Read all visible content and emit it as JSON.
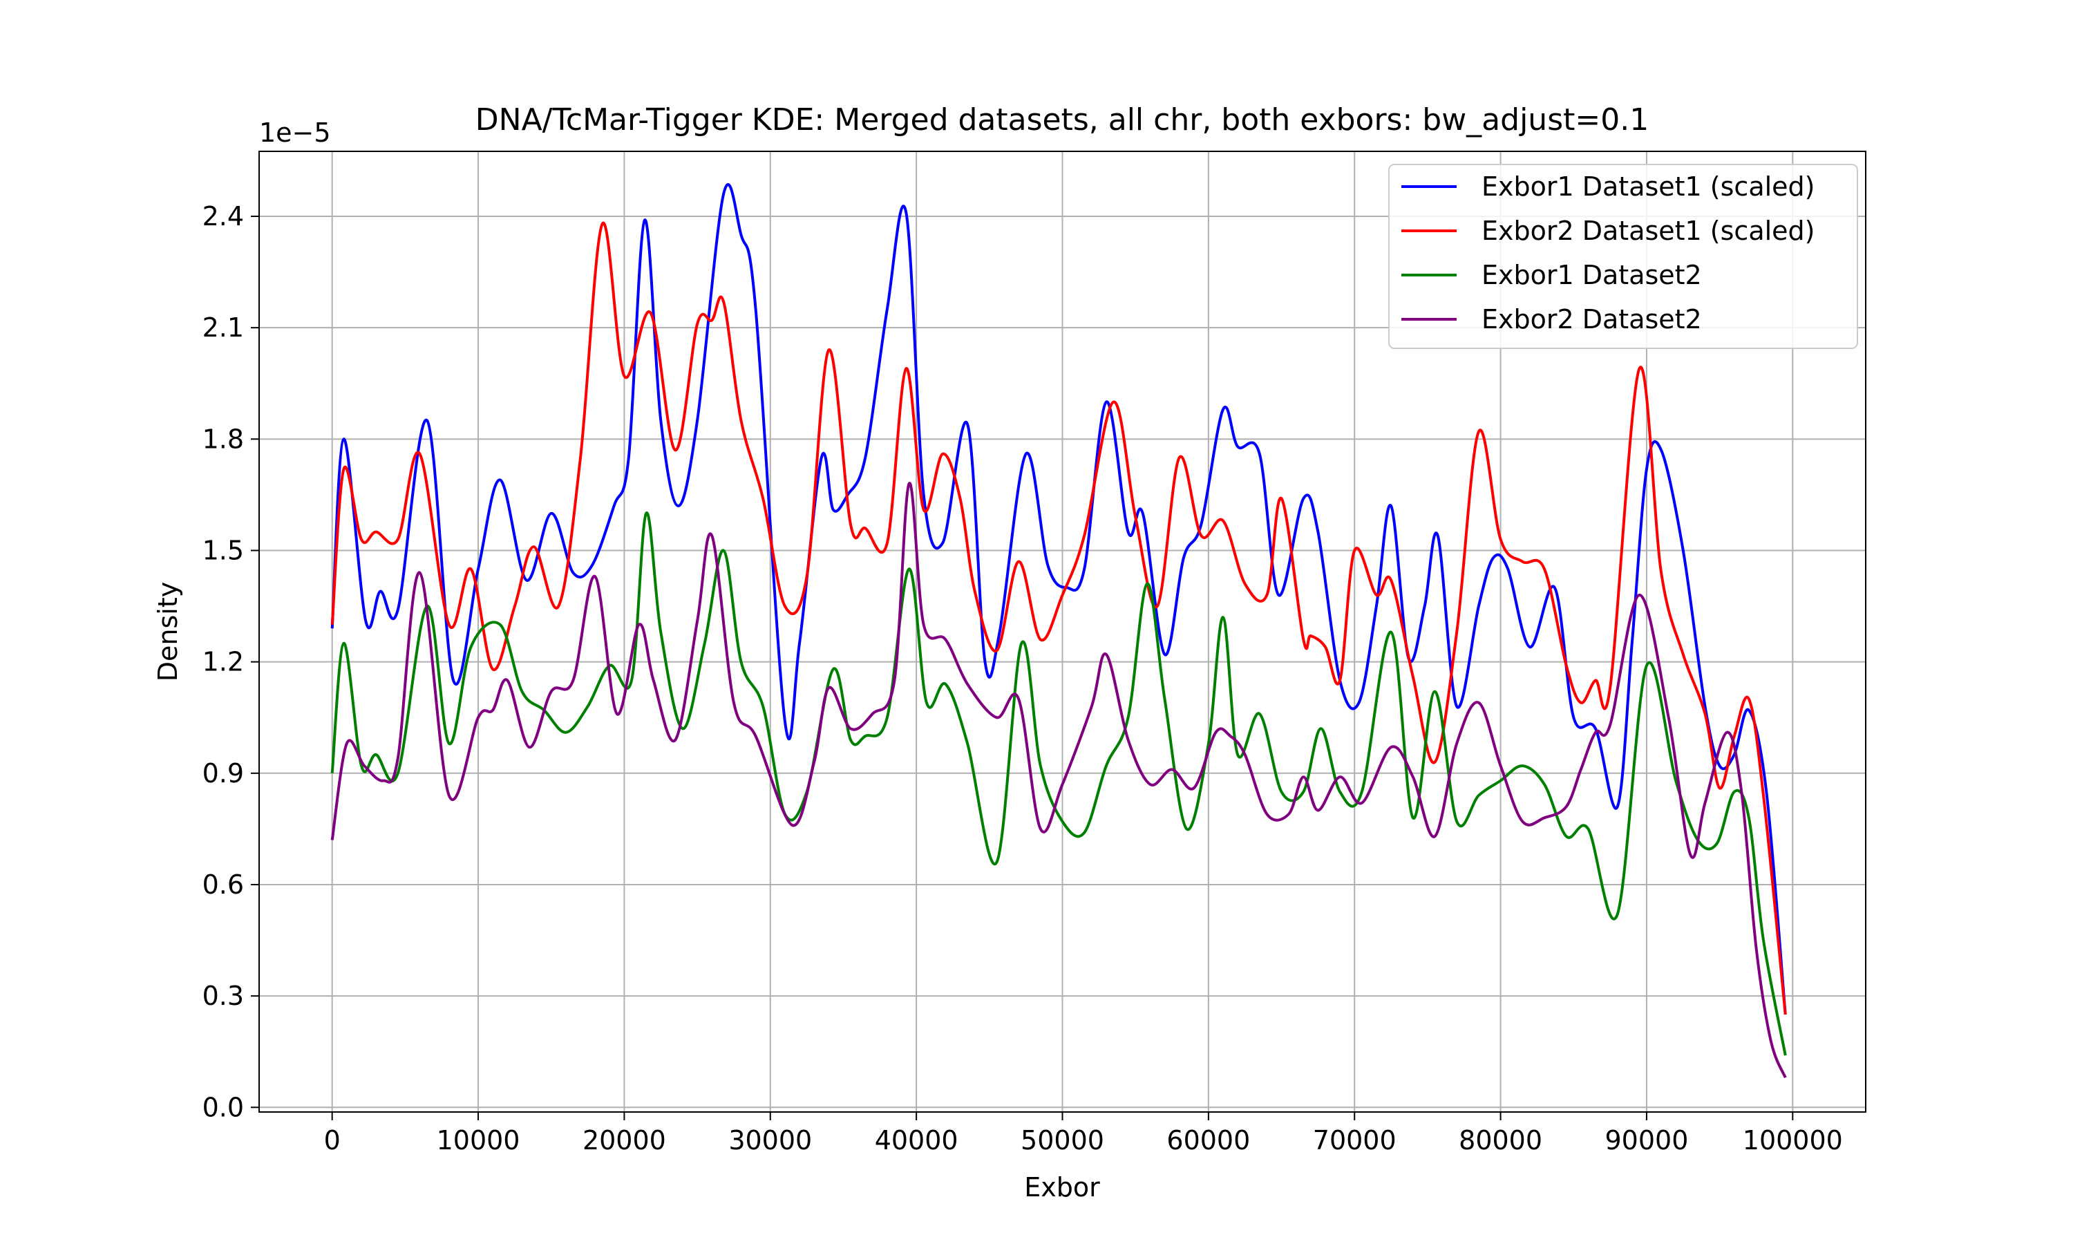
{
  "chart_data": {
    "type": "line",
    "title": "DNA/TcMar-Tigger KDE: Merged datasets, all chr, both exbors: bw_adjust=0.1",
    "xlabel": "Exbor",
    "ylabel": "Density",
    "y_scale_label": "1e−5",
    "xlim": [
      -5000,
      105000
    ],
    "ylim": [
      -1.25e-07,
      2.575e-05
    ],
    "x_ticks": [
      0,
      10000,
      20000,
      30000,
      40000,
      50000,
      60000,
      70000,
      80000,
      90000,
      100000
    ],
    "x_tick_labels": [
      "0",
      "10000",
      "20000",
      "30000",
      "40000",
      "50000",
      "60000",
      "70000",
      "80000",
      "90000",
      "100000"
    ],
    "y_ticks": [
      0,
      3e-06,
      6e-06,
      9e-06,
      1.2e-05,
      1.5e-05,
      1.8e-05,
      2.1e-05,
      2.4e-05
    ],
    "y_tick_labels": [
      "0.0",
      "0.3",
      "0.6",
      "0.9",
      "1.2",
      "1.5",
      "1.8",
      "2.1",
      "2.4"
    ],
    "grid": true,
    "legend_position": "top-right",
    "series": [
      {
        "name": "Exbor1 Dataset1 (scaled)",
        "color": "#0000ff",
        "x": [
          0,
          800,
          2300,
          3300,
          4500,
          6500,
          8300,
          10000,
          11500,
          13300,
          15000,
          16500,
          17800,
          19300,
          20300,
          21400,
          22500,
          23700,
          25000,
          26800,
          28000,
          29000,
          31000,
          32000,
          33500,
          34300,
          35300,
          36500,
          38000,
          39300,
          40500,
          41800,
          43500,
          44700,
          45700,
          47500,
          49000,
          50300,
          51500,
          53000,
          54500,
          55500,
          57000,
          58300,
          59500,
          61000,
          62000,
          63500,
          64800,
          66500,
          67500,
          69000,
          70300,
          71500,
          72500,
          73700,
          74800,
          75700,
          77000,
          78500,
          79500,
          80500,
          82000,
          83700,
          85000,
          86500,
          88000,
          89000,
          90000,
          91000,
          92500,
          94000,
          95000,
          96000,
          97000,
          98200,
          99500
        ],
        "y": [
          1.29e-05,
          1.8e-05,
          1.31e-05,
          1.39e-05,
          1.34e-05,
          1.85e-05,
          1.15e-05,
          1.45e-05,
          1.69e-05,
          1.42e-05,
          1.6e-05,
          1.44e-05,
          1.46e-05,
          1.62e-05,
          1.75e-05,
          2.39e-05,
          1.85e-05,
          1.62e-05,
          1.85e-05,
          2.46e-05,
          2.35e-05,
          2.15e-05,
          1.04e-05,
          1.25e-05,
          1.75e-05,
          1.61e-05,
          1.65e-05,
          1.75e-05,
          2.15e-05,
          2.41e-05,
          1.65e-05,
          1.52e-05,
          1.84e-05,
          1.2e-05,
          1.28e-05,
          1.76e-05,
          1.46e-05,
          1.4e-05,
          1.45e-05,
          1.9e-05,
          1.55e-05,
          1.6e-05,
          1.22e-05,
          1.48e-05,
          1.57e-05,
          1.88e-05,
          1.78e-05,
          1.76e-05,
          1.38e-05,
          1.64e-05,
          1.55e-05,
          1.15e-05,
          1.09e-05,
          1.35e-05,
          1.62e-05,
          1.21e-05,
          1.35e-05,
          1.54e-05,
          1.08e-05,
          1.35e-05,
          1.48e-05,
          1.45e-05,
          1.24e-05,
          1.4e-05,
          1.05e-05,
          1.02e-05,
          8.1e-06,
          1.25e-05,
          1.72e-05,
          1.77e-05,
          1.5e-05,
          1.08e-05,
          9.2e-06,
          9.5e-06,
          1.07e-05,
          8.5e-06,
          2.5e-06
        ]
      },
      {
        "name": "Exbor2 Dataset1 (scaled)",
        "color": "#ff0000",
        "x": [
          0,
          800,
          2000,
          3000,
          4500,
          6000,
          8000,
          9500,
          11000,
          12500,
          13800,
          15500,
          17000,
          18500,
          20000,
          21800,
          23500,
          25000,
          26000,
          26800,
          28000,
          29500,
          31000,
          32500,
          34000,
          35500,
          36500,
          38000,
          39300,
          40500,
          41800,
          43000,
          44000,
          45500,
          47000,
          48500,
          50000,
          51500,
          53500,
          55000,
          56500,
          58000,
          59500,
          61000,
          62500,
          64000,
          65000,
          66500,
          67000,
          68000,
          69000,
          70000,
          71500,
          72500,
          74000,
          75500,
          77000,
          78500,
          80000,
          81500,
          83000,
          84500,
          85500,
          86500,
          87500,
          89500,
          91000,
          92500,
          94000,
          95000,
          96000,
          97000,
          98000,
          99500
        ],
        "y": [
          1.3e-05,
          1.72e-05,
          1.53e-05,
          1.55e-05,
          1.53e-05,
          1.76e-05,
          1.3e-05,
          1.45e-05,
          1.18e-05,
          1.35e-05,
          1.51e-05,
          1.35e-05,
          1.75e-05,
          2.38e-05,
          1.97e-05,
          2.14e-05,
          1.77e-05,
          2.11e-05,
          2.12e-05,
          2.17e-05,
          1.85e-05,
          1.64e-05,
          1.35e-05,
          1.43e-05,
          2.04e-05,
          1.57e-05,
          1.56e-05,
          1.52e-05,
          1.99e-05,
          1.61e-05,
          1.76e-05,
          1.64e-05,
          1.39e-05,
          1.23e-05,
          1.47e-05,
          1.26e-05,
          1.38e-05,
          1.54e-05,
          1.9e-05,
          1.59e-05,
          1.35e-05,
          1.75e-05,
          1.54e-05,
          1.58e-05,
          1.41e-05,
          1.38e-05,
          1.64e-05,
          1.26e-05,
          1.27e-05,
          1.24e-05,
          1.15e-05,
          1.5e-05,
          1.38e-05,
          1.42e-05,
          1.16e-05,
          9.3e-06,
          1.28e-05,
          1.82e-05,
          1.53e-05,
          1.47e-05,
          1.45e-05,
          1.19e-05,
          1.09e-05,
          1.15e-05,
          1.13e-05,
          1.99e-05,
          1.44e-05,
          1.22e-05,
          1.06e-05,
          8.6e-06,
          1e-05,
          1.1e-05,
          8.4e-06,
          2.5e-06
        ]
      },
      {
        "name": "Exbor1 Dataset2",
        "color": "#008000",
        "x": [
          0,
          800,
          2000,
          3000,
          4500,
          6500,
          8000,
          9500,
          11500,
          13000,
          14500,
          16000,
          17500,
          19000,
          20500,
          21500,
          22500,
          24000,
          25500,
          26800,
          28000,
          29500,
          31000,
          32500,
          34300,
          35500,
          36500,
          38000,
          39500,
          40700,
          42000,
          43500,
          45500,
          47200,
          48500,
          50000,
          51500,
          53000,
          54500,
          55800,
          57000,
          58500,
          60000,
          61000,
          62000,
          63500,
          65000,
          66500,
          67700,
          69000,
          70500,
          72500,
          74000,
          75500,
          77000,
          78500,
          80000,
          81500,
          83000,
          84500,
          86000,
          88000,
          90000,
          92000,
          93500,
          94800,
          96000,
          97000,
          98000,
          99500
        ],
        "y": [
          9e-06,
          1.25e-05,
          9.2e-06,
          9.5e-06,
          9e-06,
          1.35e-05,
          9.8e-06,
          1.24e-05,
          1.3e-05,
          1.12e-05,
          1.07e-05,
          1.01e-05,
          1.08e-05,
          1.19e-05,
          1.15e-05,
          1.6e-05,
          1.28e-05,
          1.02e-05,
          1.25e-05,
          1.5e-05,
          1.2e-05,
          1.08e-05,
          7.9e-06,
          8.5e-06,
          1.18e-05,
          9.9e-06,
          1e-05,
          1.05e-05,
          1.45e-05,
          1.09e-05,
          1.14e-05,
          9.8e-06,
          6.6e-06,
          1.25e-05,
          9.2e-06,
          7.7e-06,
          7.4e-06,
          9.2e-06,
          1.05e-05,
          1.41e-05,
          1.1e-05,
          7.5e-06,
          9.8e-06,
          1.32e-05,
          9.5e-06,
          1.06e-05,
          8.5e-06,
          8.5e-06,
          1.02e-05,
          8.5e-06,
          8.5e-06,
          1.28e-05,
          7.8e-06,
          1.12e-05,
          7.7e-06,
          8.4e-06,
          8.8e-06,
          9.2e-06,
          8.7e-06,
          7.3e-06,
          7.5e-06,
          5.2e-06,
          1.19e-05,
          8.8e-06,
          7.2e-06,
          7.1e-06,
          8.5e-06,
          7.8e-06,
          4.5e-06,
          1.4e-06
        ]
      },
      {
        "name": "Exbor2 Dataset2",
        "color": "#800080",
        "x": [
          0,
          1000,
          2200,
          3500,
          4500,
          6000,
          8000,
          10000,
          11000,
          12000,
          13500,
          15000,
          16500,
          18000,
          19500,
          21000,
          22000,
          23500,
          25000,
          26000,
          27500,
          29000,
          31500,
          33000,
          34000,
          35500,
          37000,
          38500,
          39500,
          40500,
          42000,
          43500,
          45500,
          47000,
          48500,
          50000,
          52000,
          53000,
          54500,
          56000,
          57500,
          59000,
          60500,
          61500,
          62500,
          64000,
          65500,
          66500,
          67500,
          69000,
          70500,
          72500,
          74000,
          75500,
          77000,
          78500,
          80000,
          81500,
          83000,
          84500,
          85500,
          86500,
          87500,
          89500,
          91500,
          93000,
          94000,
          95500,
          96500,
          97500,
          98500,
          99500
        ],
        "y": [
          7.2e-06,
          9.8e-06,
          9.2e-06,
          8.8e-06,
          9.4e-06,
          1.44e-05,
          8.4e-06,
          1.05e-05,
          1.07e-05,
          1.15e-05,
          9.7e-06,
          1.12e-05,
          1.15e-05,
          1.43e-05,
          1.06e-05,
          1.3e-05,
          1.15e-05,
          9.9e-06,
          1.31e-05,
          1.54e-05,
          1.09e-05,
          1e-05,
          7.6e-06,
          9.3e-06,
          1.13e-05,
          1.02e-05,
          1.06e-05,
          1.15e-05,
          1.68e-05,
          1.3e-05,
          1.26e-05,
          1.14e-05,
          1.05e-05,
          1.1e-05,
          7.5e-06,
          8.7e-06,
          1.08e-05,
          1.22e-05,
          9.9e-06,
          8.7e-06,
          9.1e-06,
          8.6e-06,
          1.01e-05,
          1e-05,
          9.5e-06,
          7.9e-06,
          7.9e-06,
          8.9e-06,
          8e-06,
          8.9e-06,
          8.2e-06,
          9.7e-06,
          8.9e-06,
          7.3e-06,
          9.8e-06,
          1.09e-05,
          9.2e-06,
          7.7e-06,
          7.8e-06,
          8.1e-06,
          9.1e-06,
          1.01e-05,
          1.03e-05,
          1.38e-05,
          1.05e-05,
          6.8e-06,
          8.2e-06,
          1.01e-05,
          8.5e-06,
          4.3e-06,
          1.8e-06,
          8e-07
        ]
      }
    ]
  }
}
